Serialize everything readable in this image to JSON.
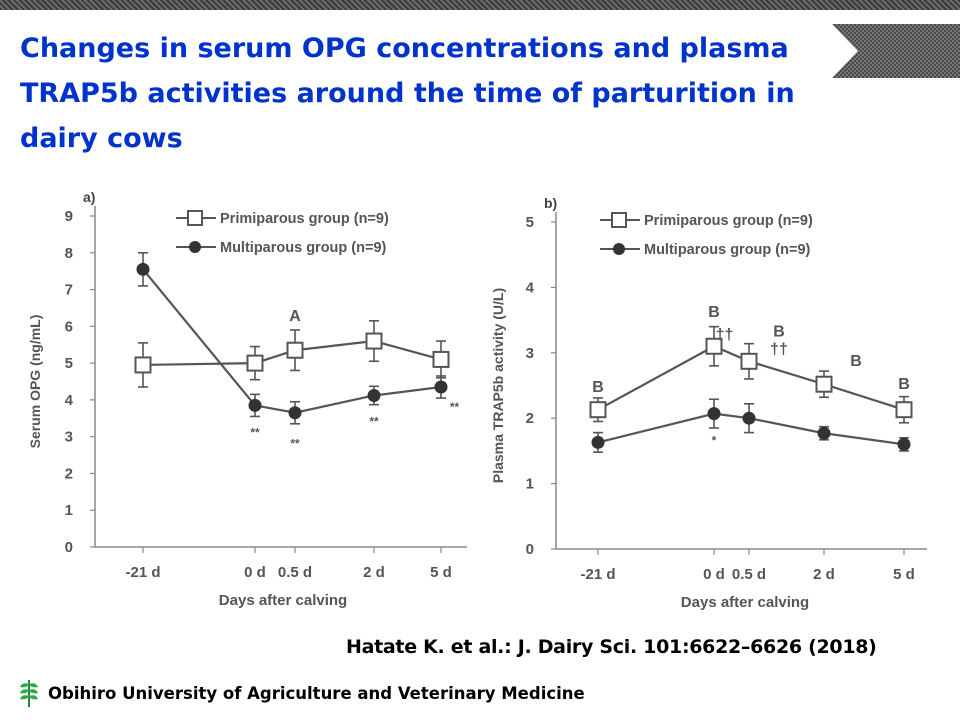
{
  "title": "Changes in serum OPG concentrations and plasma TRAP5b activities around the time of parturition in dairy cows",
  "citation": "Hatate K. et al.: J. Dairy Sci. 101:6622–6626 (2018)",
  "footer": {
    "institution": "Obihiro University of Agriculture and Veterinary Medicine",
    "logo_icon": "leaf-logo-icon"
  },
  "colors": {
    "title": "#0033cc",
    "series": "#555555"
  },
  "chart_data": [
    {
      "type": "line",
      "panel_label": "a)",
      "xlabel": "Days after calving",
      "ylabel": "Serum OPG (ng/mL)",
      "x_ticks": [
        "-21 d",
        "0 d",
        "0.5 d",
        "2 d",
        "5 d"
      ],
      "x_order": [
        0,
        1,
        2,
        3,
        4
      ],
      "ylim": [
        0,
        9
      ],
      "y_ticks": [
        0,
        1,
        2,
        3,
        4,
        5,
        6,
        7,
        8,
        9
      ],
      "grid": false,
      "legend_position": "top",
      "series": [
        {
          "name": "Primiparous group (n=9)",
          "marker": "open-square",
          "values": [
            4.95,
            5.0,
            5.35,
            5.6,
            5.1
          ],
          "errors": [
            0.6,
            0.45,
            0.55,
            0.55,
            0.5
          ]
        },
        {
          "name": "Multiparous group (n=9)",
          "marker": "filled-circle",
          "values": [
            7.55,
            3.85,
            3.65,
            4.12,
            4.35
          ],
          "errors": [
            0.45,
            0.3,
            0.3,
            0.25,
            0.3
          ]
        }
      ],
      "annotations": [
        {
          "text": "A",
          "x": 2,
          "y": 6.15
        },
        {
          "text": "**",
          "x": 1,
          "y": 3.0
        },
        {
          "text": "**",
          "x": 2,
          "y": 2.7
        },
        {
          "text": "**",
          "x": 3,
          "y": 3.3
        },
        {
          "text": "**",
          "x": 4.45,
          "y": 3.7
        }
      ]
    },
    {
      "type": "line",
      "panel_label": "b)",
      "xlabel": "Days after calving",
      "ylabel": "Plasma TRAP5b activity (U/L)",
      "x_ticks": [
        "-21 d",
        "0 d",
        "0.5 d",
        "2 d",
        "5 d"
      ],
      "x_order": [
        0,
        1,
        2,
        3,
        4
      ],
      "ylim": [
        0,
        5
      ],
      "y_ticks": [
        0,
        1,
        2,
        3,
        4,
        5
      ],
      "grid": false,
      "legend_position": "top",
      "series": [
        {
          "name": "Primiparous group (n=9)",
          "marker": "open-square",
          "values": [
            2.13,
            3.1,
            2.87,
            2.52,
            2.13
          ],
          "errors": [
            0.18,
            0.3,
            0.27,
            0.2,
            0.2
          ]
        },
        {
          "name": "Multiparous group (n=9)",
          "marker": "filled-circle",
          "values": [
            1.63,
            2.07,
            2.0,
            1.77,
            1.6
          ],
          "errors": [
            0.15,
            0.22,
            0.22,
            0.1,
            0.1
          ]
        }
      ],
      "annotations": [
        {
          "text": "B",
          "x": 0,
          "y": 2.4
        },
        {
          "text": "B",
          "x": 1,
          "y": 3.55
        },
        {
          "text": "††",
          "x": 1.3,
          "y": 3.2
        },
        {
          "text": "B",
          "x": 2.4,
          "y": 3.25
        },
        {
          "text": "††",
          "x": 2.4,
          "y": 2.98
        },
        {
          "text": "B",
          "x": 3.4,
          "y": 2.8
        },
        {
          "text": "B",
          "x": 4,
          "y": 2.45
        },
        {
          "text": "*",
          "x": 1,
          "y": 1.6
        }
      ]
    }
  ]
}
